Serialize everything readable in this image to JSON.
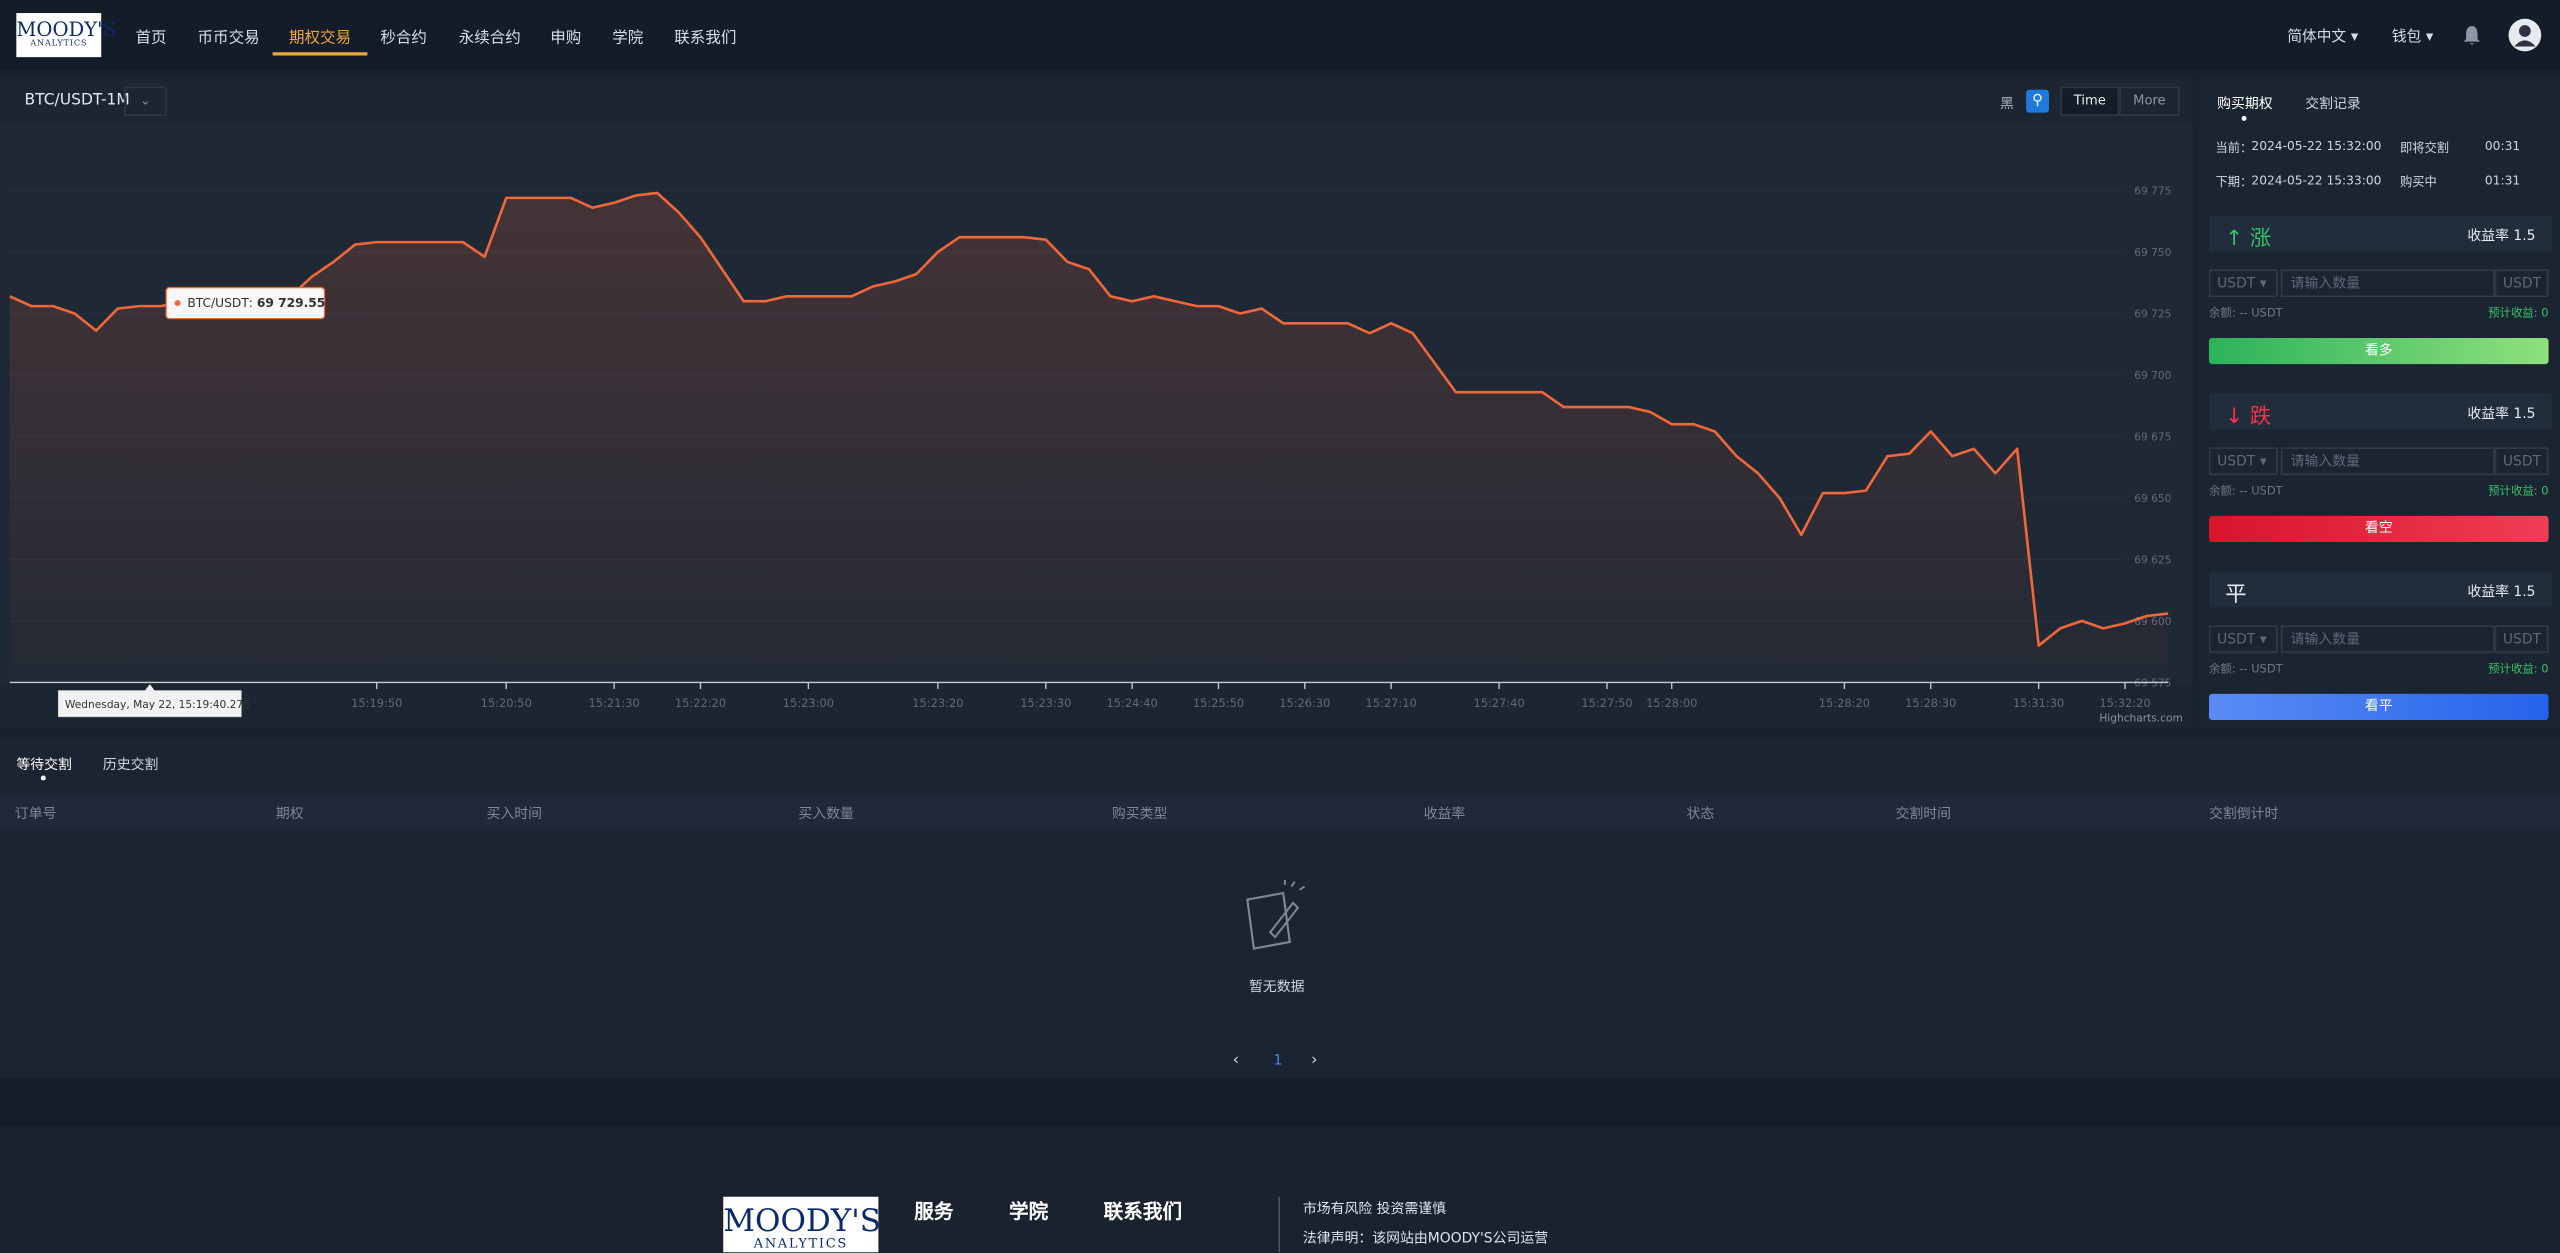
{
  "nav": {
    "logo": "MOODY'S",
    "logo_sub": "ANALYTICS",
    "items": [
      "首页",
      "币币交易",
      "期权交易",
      "秒合约",
      "永续合约",
      "申购",
      "学院",
      "联系我们"
    ],
    "active": 2,
    "language": "简体中文",
    "wallet": "钱包"
  },
  "chart_toolbar": {
    "symbol": "BTC/USDT-1M",
    "theme": "黑",
    "time": "Time",
    "more": "More"
  },
  "chart_data": {
    "type": "line",
    "color": "#f0673a",
    "grid": true,
    "categories": [
      null,
      null,
      null,
      null,
      null,
      null,
      null,
      null,
      null,
      null,
      null,
      null,
      null,
      null,
      null,
      null,
      null,
      "15:19:50",
      null,
      null,
      null,
      null,
      null,
      "15:20:50",
      null,
      null,
      null,
      null,
      "15:21:30",
      null,
      null,
      null,
      "15:22:20",
      null,
      null,
      null,
      null,
      "15:23:00",
      null,
      null,
      null,
      null,
      null,
      "15:23:20",
      null,
      null,
      null,
      null,
      "15:23:30",
      null,
      null,
      null,
      "15:24:40",
      null,
      null,
      null,
      "15:25:50",
      null,
      null,
      null,
      "15:26:30",
      null,
      null,
      null,
      "15:27:10",
      null,
      null,
      null,
      null,
      "15:27:40",
      null,
      null,
      null,
      null,
      "15:27:50",
      null,
      null,
      "15:28:00",
      null,
      null,
      null,
      null,
      null,
      null,
      null,
      "15:28:20",
      null,
      null,
      null,
      "15:28:30",
      null,
      null,
      null,
      null,
      "15:31:30",
      null,
      null,
      null,
      "15:32:20",
      null,
      null
    ],
    "values": [
      69732,
      69728,
      69728,
      69725,
      69718,
      69727,
      69728,
      69728,
      69729.55,
      69728,
      69731,
      69732,
      69732,
      69732,
      69740,
      69746,
      69753,
      69754,
      69754,
      69754,
      69754,
      69754,
      69748,
      69772,
      69772,
      69772,
      69772,
      69768,
      69770,
      69773,
      69774,
      69766,
      69756,
      69743,
      69730,
      69730,
      69732,
      69732,
      69732,
      69732,
      69736,
      69738,
      69741,
      69750,
      69756,
      69756,
      69756,
      69756,
      69755,
      69746,
      69743,
      69732,
      69730,
      69732,
      69730,
      69728,
      69728,
      69725,
      69727,
      69721,
      69721,
      69721,
      69721,
      69717,
      69721,
      69717,
      69705,
      69693,
      69693,
      69693,
      69693,
      69693,
      69687,
      69687,
      69687,
      69687,
      69685,
      69680,
      69680,
      69677,
      69667,
      69660,
      69650,
      69635,
      69652,
      69652,
      69653,
      69667,
      69668,
      69677,
      69667,
      69670,
      69660,
      69670,
      69590,
      69597,
      69600,
      69597,
      69599,
      69602,
      69603
    ],
    "ylim": [
      69575,
      69800
    ],
    "yticks": [
      {
        "value": 69575,
        "label": "69 575"
      },
      {
        "value": 69600,
        "label": "69 600"
      },
      {
        "value": 69625,
        "label": "69 625"
      },
      {
        "value": 69650,
        "label": "69 650"
      },
      {
        "value": 69675,
        "label": "69 675"
      },
      {
        "value": 69700,
        "label": "69 700"
      },
      {
        "value": 69725,
        "label": "69 725"
      },
      {
        "value": 69750,
        "label": "69 750"
      },
      {
        "value": 69775,
        "label": "69 775"
      }
    ],
    "tooltip": {
      "series_name": "BTC/USDT",
      "value": {
        "value": 69729.55,
        "label": "69 729.55"
      },
      "date": "Wednesday, May 22, 15:19:40.278"
    },
    "credits": "Highcharts.com"
  },
  "panel": {
    "tabs": [
      "购买期权",
      "交割记录"
    ],
    "rows": [
      {
        "label": "当前：",
        "time": "2024-05-22 15:32:00",
        "status": "即将交割",
        "countdown": "00:31"
      },
      {
        "label": "下期：",
        "time": "2024-05-22 15:33:00",
        "status": "购买中",
        "countdown": "01:31"
      }
    ],
    "options": [
      {
        "arrow": "↑",
        "name": "涨",
        "rate_label": "收益率",
        "rate": 1.5,
        "currency": "USDT",
        "placeholder": "请输入数量",
        "unit": "USDT",
        "balance": "余额: -- USDT",
        "expected": "预计收益: 0",
        "button": "看多"
      },
      {
        "arrow": "↓",
        "name": "跌",
        "rate_label": "收益率",
        "rate": 1.5,
        "currency": "USDT",
        "placeholder": "请输入数量",
        "unit": "USDT",
        "balance": "余额: -- USDT",
        "expected": "预计收益: 0",
        "button": "看空"
      },
      {
        "name": "平",
        "rate_label": "收益率",
        "rate": 1.5,
        "currency": "USDT",
        "placeholder": "请输入数量",
        "unit": "USDT",
        "balance": "余额: -- USDT",
        "expected": "预计收益: 0",
        "button": "看平"
      }
    ]
  },
  "orders": {
    "tabs": [
      "等待交割",
      "历史交割"
    ],
    "columns": [
      "订单号",
      "期权",
      "买入时间",
      "买入数量",
      "购买类型",
      "收益率",
      "状态",
      "交割时间",
      "交割倒计时"
    ],
    "empty": "暂无数据",
    "page": 1
  },
  "footer": {
    "logo": "MOODY'S",
    "logo_sub": "ANALYTICS",
    "links": [
      "服务",
      "学院",
      "联系我们"
    ],
    "risk": "市场有风险 投资需谨慎",
    "legal": "法律声明：该网站由MOODY'S公司运营"
  }
}
